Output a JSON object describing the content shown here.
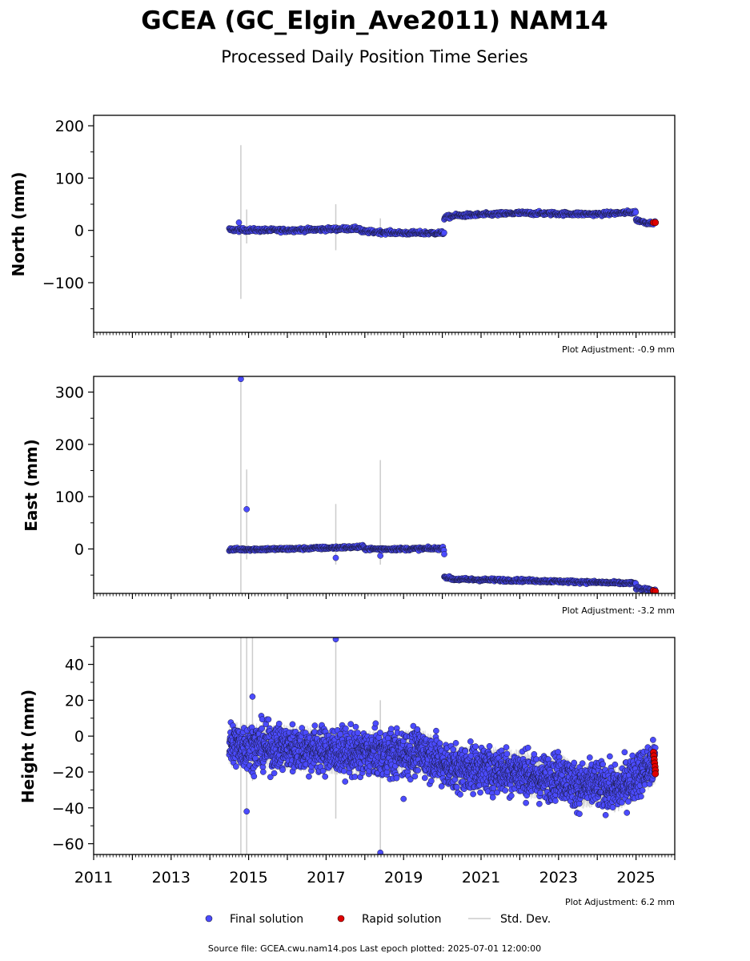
{
  "title": "GCEA (GC_Elgin_Ave2011) NAM14",
  "subtitle": "Processed Daily Position Time Series",
  "footer": "Source file: GCEA.cwu.nam14.pos  Last epoch plotted: 2025-07-01 12:00:00",
  "legend": {
    "final": "Final solution",
    "rapid": "Rapid solution",
    "std": "Std. Dev."
  },
  "colors": {
    "final": "#4b4bff",
    "rapid": "#e00000",
    "std": "#cccccc",
    "marker_edge": "#1a1a3a"
  },
  "chart_data": [
    {
      "type": "scatter",
      "panel": "north",
      "ylabel": "North (mm)",
      "adjustment": "Plot Adjustment: -0.9 mm",
      "xlim": [
        2011,
        2026
      ],
      "ylim": [
        -195,
        220
      ],
      "yticks": [
        -100,
        0,
        100,
        200
      ],
      "yticklabels": [
        "−100",
        "0",
        "100",
        "200"
      ],
      "segments": [
        {
          "x": [
            2014.5,
            2016.0,
            2017.5,
            2017.9
          ],
          "y": [
            1,
            0,
            3,
            3
          ],
          "spread": 2.5
        },
        {
          "x": [
            2017.9,
            2019.0,
            2020.05
          ],
          "y": [
            -2,
            -5,
            -5
          ],
          "spread": 2.5
        },
        {
          "x": [
            2020.05,
            2020.3,
            2022.0,
            2024.0,
            2025.0
          ],
          "y": [
            24,
            28,
            33,
            31,
            35
          ],
          "spread": 2.5
        },
        {
          "x": [
            2025.0,
            2025.3,
            2025.5
          ],
          "y": [
            20,
            14,
            15
          ],
          "spread": 2
        }
      ],
      "rapid": {
        "x": [
          2025.45,
          2025.5
        ],
        "y": [
          15,
          15
        ]
      },
      "outliers": [
        {
          "x": 2014.75,
          "y": 15
        }
      ],
      "errorbars": [
        {
          "x": 2014.8,
          "low": -131,
          "high": 163
        },
        {
          "x": 2014.95,
          "low": -25,
          "high": 40
        },
        {
          "x": 2017.25,
          "low": -38,
          "high": 50
        },
        {
          "x": 2018.4,
          "low": -15,
          "high": 23
        }
      ]
    },
    {
      "type": "scatter",
      "panel": "east",
      "ylabel": "East (mm)",
      "adjustment": "Plot Adjustment: -3.2 mm",
      "xlim": [
        2011,
        2026
      ],
      "ylim": [
        -85,
        330
      ],
      "yticks": [
        0,
        100,
        200,
        300
      ],
      "yticklabels": [
        "0",
        "100",
        "200",
        "300"
      ],
      "segments": [
        {
          "x": [
            2014.5,
            2016.0,
            2017.5,
            2018.0
          ],
          "y": [
            -1,
            0,
            3,
            4
          ],
          "spread": 2
        },
        {
          "x": [
            2018.0,
            2019.0,
            2020.05
          ],
          "y": [
            0,
            0,
            1
          ],
          "spread": 2
        },
        {
          "x": [
            2020.05,
            2020.3,
            2022.0,
            2024.0,
            2025.0
          ],
          "y": [
            -53,
            -58,
            -60,
            -64,
            -66
          ],
          "spread": 2
        },
        {
          "x": [
            2025.0,
            2025.5
          ],
          "y": [
            -75,
            -80
          ],
          "spread": 2
        }
      ],
      "rapid": {
        "x": [
          2025.45,
          2025.5
        ],
        "y": [
          -80,
          -81
        ]
      },
      "outliers": [
        {
          "x": 2014.8,
          "y": 325
        },
        {
          "x": 2014.95,
          "y": 76
        },
        {
          "x": 2017.25,
          "y": -17
        },
        {
          "x": 2018.4,
          "y": -13
        },
        {
          "x": 2020.05,
          "y": -10
        }
      ],
      "errorbars": [
        {
          "x": 2014.8,
          "low": -90,
          "high": 330
        },
        {
          "x": 2014.95,
          "low": -20,
          "high": 152
        },
        {
          "x": 2017.25,
          "low": -30,
          "high": 86
        },
        {
          "x": 2018.4,
          "low": -30,
          "high": 170
        }
      ]
    },
    {
      "type": "scatter",
      "panel": "height",
      "ylabel": "Height (mm)",
      "adjustment": "Plot Adjustment: 6.2 mm",
      "xlim": [
        2011,
        2026
      ],
      "ylim": [
        -66,
        55
      ],
      "yticks": [
        -60,
        -40,
        -20,
        0,
        20,
        40
      ],
      "yticklabels": [
        "−60",
        "−40",
        "−20",
        "0",
        "20",
        "40"
      ],
      "xticks": [
        2011,
        2013,
        2015,
        2017,
        2019,
        2021,
        2023,
        2025
      ],
      "xticklabels": [
        "2011",
        "2013",
        "2015",
        "2017",
        "2019",
        "2021",
        "2023",
        "2025"
      ],
      "segments": [
        {
          "x": [
            2014.5,
            2015.5,
            2016.5,
            2017.5,
            2018.5,
            2019.5,
            2020.3,
            2021.0,
            2022.0,
            2022.5,
            2023.0,
            2023.5,
            2024.0,
            2024.5,
            2025.0,
            2025.5
          ],
          "y": [
            -5,
            -6,
            -7,
            -9,
            -10,
            -9,
            -18,
            -18,
            -20,
            -24,
            -22,
            -28,
            -27,
            -30,
            -22,
            -15
          ],
          "spread": 9
        }
      ],
      "rapid": {
        "x": [
          2025.45,
          2025.46,
          2025.47,
          2025.48,
          2025.49,
          2025.5,
          2025.5
        ],
        "y": [
          -9,
          -11,
          -13,
          -15,
          -17,
          -19,
          -21
        ]
      },
      "outliers": [
        {
          "x": 2014.95,
          "y": -42
        },
        {
          "x": 2015.1,
          "y": 22
        },
        {
          "x": 2017.25,
          "y": 54
        },
        {
          "x": 2018.4,
          "y": -65
        },
        {
          "x": 2019.0,
          "y": -35
        }
      ],
      "errorbars": [
        {
          "x": 2014.8,
          "low": -66,
          "high": 55
        },
        {
          "x": 2014.95,
          "low": -66,
          "high": 55
        },
        {
          "x": 2015.1,
          "low": -25,
          "high": 55
        },
        {
          "x": 2017.25,
          "low": -46,
          "high": 55
        },
        {
          "x": 2018.4,
          "low": -66,
          "high": 20
        }
      ]
    }
  ]
}
